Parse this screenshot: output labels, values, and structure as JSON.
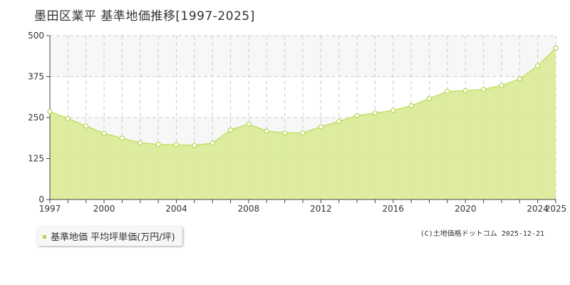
{
  "chart_data": {
    "type": "area",
    "title": "墨田区業平 基準地価推移[1997-2025]",
    "x": [
      1997,
      1998,
      1999,
      2000,
      2001,
      2002,
      2003,
      2004,
      2005,
      2006,
      2007,
      2008,
      2009,
      2010,
      2011,
      2012,
      2013,
      2014,
      2015,
      2016,
      2017,
      2018,
      2019,
      2020,
      2021,
      2022,
      2023,
      2024,
      2025
    ],
    "series": [
      {
        "name": "基準地価 平均坪単価(万円/坪)",
        "values": [
          268,
          247,
          224,
          202,
          187,
          173,
          168,
          167,
          165,
          172,
          212,
          230,
          209,
          203,
          203,
          222,
          238,
          256,
          264,
          272,
          286,
          308,
          330,
          332,
          336,
          348,
          368,
          408,
          462
        ]
      }
    ],
    "xticks": [
      "1997",
      "2000",
      "2004",
      "2008",
      "2012",
      "2016",
      "2020",
      "2024",
      "2025"
    ],
    "yticks": [
      "0",
      "125",
      "250",
      "375",
      "500"
    ],
    "xlim": [
      1997,
      2025
    ],
    "ylim": [
      0,
      500
    ],
    "grid": true,
    "legend_position": "bottom-left",
    "colors": {
      "fill": "#dbeb9a",
      "line": "#c4e06a",
      "marker": "#b5d850",
      "grid": "#cccccc",
      "band": "#f7f7f7"
    }
  },
  "legend_label": "基準地価 平均坪単価(万円/坪)",
  "credit": "(C)土地価格ドットコム 2025-12-21"
}
